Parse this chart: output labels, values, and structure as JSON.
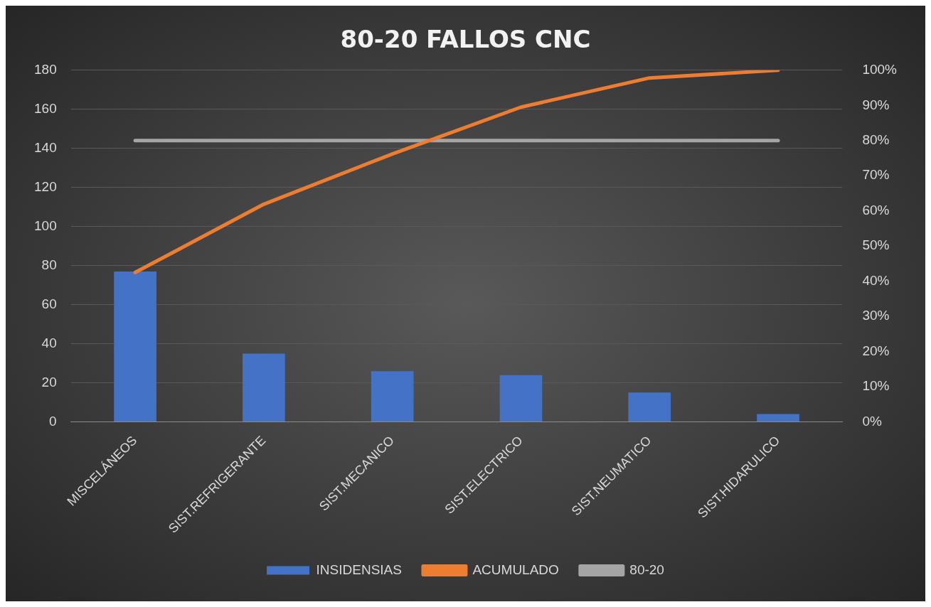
{
  "chart_data": {
    "type": "bar",
    "title": "80-20 FALLOS CNC",
    "categories": [
      "MISCELÁNEOS",
      "SIST.REFRIGERANTE",
      "SIST.MECANICO",
      "SIST.ELECTRICO",
      "SIST.NEUMATICO",
      "SIST.HIDARULICO"
    ],
    "series": [
      {
        "name": "INSIDENSIAS",
        "color": "#4472c4",
        "values": [
          77,
          35,
          26,
          24,
          15,
          4
        ]
      },
      {
        "name": "ACUMULADO",
        "type": "line",
        "axis": "y2",
        "color": "#ed7d31",
        "values": [
          42.5,
          61.9,
          76.2,
          89.5,
          97.8,
          100
        ]
      },
      {
        "name": "80-20",
        "type": "line",
        "axis": "y2",
        "color": "#a5a5a5",
        "values": [
          80,
          80,
          80,
          80,
          80,
          80
        ]
      }
    ],
    "ylim": [
      0,
      180
    ],
    "yticks": [
      0,
      20,
      40,
      60,
      80,
      100,
      120,
      140,
      160,
      180
    ],
    "y2lim": [
      0,
      100
    ],
    "y2ticks": [
      {
        "value": 0,
        "label": "0%"
      },
      {
        "value": 10,
        "label": "10%"
      },
      {
        "value": 20,
        "label": "20%"
      },
      {
        "value": 30,
        "label": "30%"
      },
      {
        "value": 40,
        "label": "40%"
      },
      {
        "value": 50,
        "label": "50%"
      },
      {
        "value": 60,
        "label": "60%"
      },
      {
        "value": 70,
        "label": "70%"
      },
      {
        "value": 80,
        "label": "80%"
      },
      {
        "value": 90,
        "label": "90%"
      },
      {
        "value": 100,
        "label": "100%"
      }
    ],
    "grid": "y",
    "legend": "bottom",
    "marker": "none"
  }
}
